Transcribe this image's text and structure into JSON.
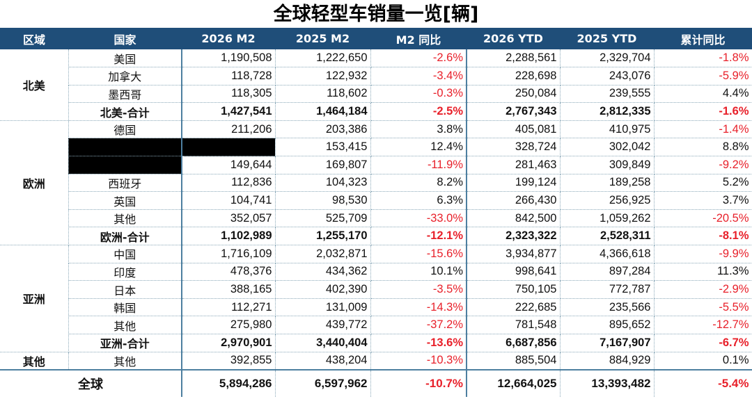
{
  "title": "全球轻型车销量一览[辆]",
  "colors": {
    "header_bg": "#1f4e79",
    "negative": "#e8202a",
    "separator": "#4d7fa0"
  },
  "headers": [
    "区域",
    "国家",
    "2026 M2",
    "2025 M2",
    "M2 同比",
    "2026 YTD",
    "2025 YTD",
    "累计同比"
  ],
  "regions": [
    {
      "name": "北美",
      "rows": [
        {
          "country": "美国",
          "m2_2026": "1,190,508",
          "m2_2025": "1,222,650",
          "m2_yoy": "-2.6%",
          "ytd_2026": "2,288,561",
          "ytd_2025": "2,329,704",
          "ytd_yoy": "-1.8%"
        },
        {
          "country": "加拿大",
          "m2_2026": "118,728",
          "m2_2025": "122,932",
          "m2_yoy": "-3.4%",
          "ytd_2026": "228,698",
          "ytd_2025": "243,076",
          "ytd_yoy": "-5.9%"
        },
        {
          "country": "墨西哥",
          "m2_2026": "118,305",
          "m2_2025": "118,602",
          "m2_yoy": "-0.3%",
          "ytd_2026": "250,084",
          "ytd_2025": "239,555",
          "ytd_yoy": "4.4%"
        }
      ],
      "subtotal": {
        "country": "北美-合计",
        "m2_2026": "1,427,541",
        "m2_2025": "1,464,184",
        "m2_yoy": "-2.5%",
        "ytd_2026": "2,767,343",
        "ytd_2025": "2,812,335",
        "ytd_yoy": "-1.6%"
      }
    },
    {
      "name": "欧洲",
      "rows": [
        {
          "country": "德国",
          "m2_2026": "211,206",
          "m2_2025": "203,386",
          "m2_yoy": "3.8%",
          "ytd_2026": "405,081",
          "ytd_2025": "410,975",
          "ytd_yoy": "-1.4%"
        },
        {
          "country": "",
          "m2_2026": "",
          "m2_2025": "153,415",
          "m2_yoy": "12.4%",
          "ytd_2026": "328,724",
          "ytd_2025": "302,042",
          "ytd_yoy": "8.8%",
          "redacted": true
        },
        {
          "country": "",
          "m2_2026": "149,644",
          "m2_2025": "169,807",
          "m2_yoy": "-11.9%",
          "ytd_2026": "281,463",
          "ytd_2025": "309,849",
          "ytd_yoy": "-9.2%",
          "redacted_country": true
        },
        {
          "country": "西班牙",
          "m2_2026": "112,836",
          "m2_2025": "104,323",
          "m2_yoy": "8.2%",
          "ytd_2026": "199,124",
          "ytd_2025": "189,258",
          "ytd_yoy": "5.2%"
        },
        {
          "country": "英国",
          "m2_2026": "104,741",
          "m2_2025": "98,530",
          "m2_yoy": "6.3%",
          "ytd_2026": "266,430",
          "ytd_2025": "256,925",
          "ytd_yoy": "3.7%"
        },
        {
          "country": "其他",
          "m2_2026": "352,057",
          "m2_2025": "525,709",
          "m2_yoy": "-33.0%",
          "ytd_2026": "842,500",
          "ytd_2025": "1,059,262",
          "ytd_yoy": "-20.5%"
        }
      ],
      "subtotal": {
        "country": "欧洲-合计",
        "m2_2026": "1,102,989",
        "m2_2025": "1,255,170",
        "m2_yoy": "-12.1%",
        "ytd_2026": "2,323,322",
        "ytd_2025": "2,528,311",
        "ytd_yoy": "-8.1%"
      }
    },
    {
      "name": "亚洲",
      "rows": [
        {
          "country": "中国",
          "m2_2026": "1,716,109",
          "m2_2025": "2,032,871",
          "m2_yoy": "-15.6%",
          "ytd_2026": "3,934,877",
          "ytd_2025": "4,366,618",
          "ytd_yoy": "-9.9%"
        },
        {
          "country": "印度",
          "m2_2026": "478,376",
          "m2_2025": "434,362",
          "m2_yoy": "10.1%",
          "ytd_2026": "998,641",
          "ytd_2025": "897,284",
          "ytd_yoy": "11.3%"
        },
        {
          "country": "日本",
          "m2_2026": "388,165",
          "m2_2025": "402,390",
          "m2_yoy": "-3.5%",
          "ytd_2026": "750,105",
          "ytd_2025": "772,787",
          "ytd_yoy": "-2.9%"
        },
        {
          "country": "韩国",
          "m2_2026": "112,271",
          "m2_2025": "131,009",
          "m2_yoy": "-14.3%",
          "ytd_2026": "222,685",
          "ytd_2025": "235,566",
          "ytd_yoy": "-5.5%"
        },
        {
          "country": "其他",
          "m2_2026": "275,980",
          "m2_2025": "439,772",
          "m2_yoy": "-37.2%",
          "ytd_2026": "781,548",
          "ytd_2025": "895,652",
          "ytd_yoy": "-12.7%"
        }
      ],
      "subtotal": {
        "country": "亚洲-合计",
        "m2_2026": "2,970,901",
        "m2_2025": "3,440,404",
        "m2_yoy": "-13.6%",
        "ytd_2026": "6,687,856",
        "ytd_2025": "7,167,907",
        "ytd_yoy": "-6.7%"
      }
    },
    {
      "name": "其他",
      "rows": [
        {
          "country": "其他",
          "m2_2026": "392,855",
          "m2_2025": "438,204",
          "m2_yoy": "-10.3%",
          "ytd_2026": "885,504",
          "ytd_2025": "884,929",
          "ytd_yoy": "0.1%"
        }
      ]
    }
  ],
  "global": {
    "label": "全球",
    "m2_2026": "5,894,286",
    "m2_2025": "6,597,962",
    "m2_yoy": "-10.7%",
    "ytd_2026": "12,664,025",
    "ytd_2025": "13,393,482",
    "ytd_yoy": "-5.4%"
  }
}
